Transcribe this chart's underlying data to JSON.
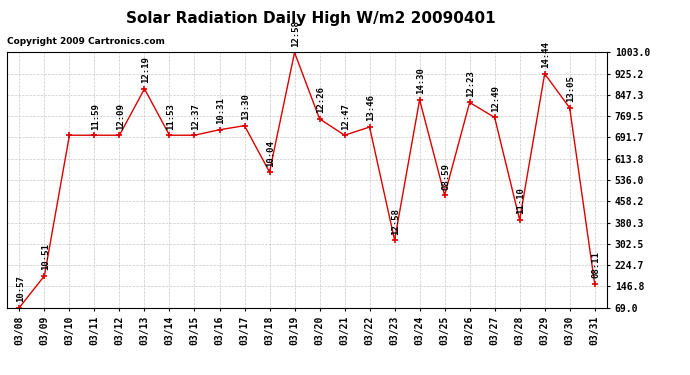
{
  "title": "Solar Radiation Daily High W/m2 20090401",
  "copyright": "Copyright 2009 Cartronics.com",
  "dates": [
    "03/08",
    "03/09",
    "03/10",
    "03/11",
    "03/12",
    "03/13",
    "03/14",
    "03/15",
    "03/16",
    "03/17",
    "03/18",
    "03/19",
    "03/20",
    "03/21",
    "03/22",
    "03/23",
    "03/24",
    "03/25",
    "03/26",
    "03/27",
    "03/28",
    "03/29",
    "03/30",
    "03/31"
  ],
  "values": [
    69.0,
    185.0,
    700.0,
    700.0,
    700.0,
    870.0,
    700.0,
    700.0,
    720.0,
    735.0,
    565.0,
    1003.0,
    760.0,
    700.0,
    730.0,
    316.0,
    830.0,
    480.0,
    820.0,
    765.0,
    390.0,
    925.0,
    800.0,
    155.0
  ],
  "labels": [
    "10:57",
    "10:51",
    "",
    "11:59",
    "12:09",
    "12:19",
    "11:53",
    "12:37",
    "10:31",
    "13:30",
    "10:04",
    "12:58",
    "12:26",
    "12:47",
    "13:46",
    "12:58",
    "14:30",
    "08:59",
    "12:23",
    "12:49",
    "11:10",
    "14:44",
    "13:05",
    "08:11"
  ],
  "yticks": [
    69.0,
    146.8,
    224.7,
    302.5,
    380.3,
    458.2,
    536.0,
    613.8,
    691.7,
    769.5,
    847.3,
    925.2,
    1003.0
  ],
  "ytick_labels": [
    "69.0",
    "146.8",
    "224.7",
    "302.5",
    "380.3",
    "458.2",
    "536.0",
    "613.8",
    "691.7",
    "769.5",
    "847.3",
    "925.2",
    "1003.0"
  ],
  "ymin": 69.0,
  "ymax": 1003.0,
  "line_color": "#dd0000",
  "bg_color": "#ffffff",
  "grid_color": "#bbbbbb",
  "title_fontsize": 11,
  "tick_fontsize": 7,
  "label_fontsize": 6.5
}
